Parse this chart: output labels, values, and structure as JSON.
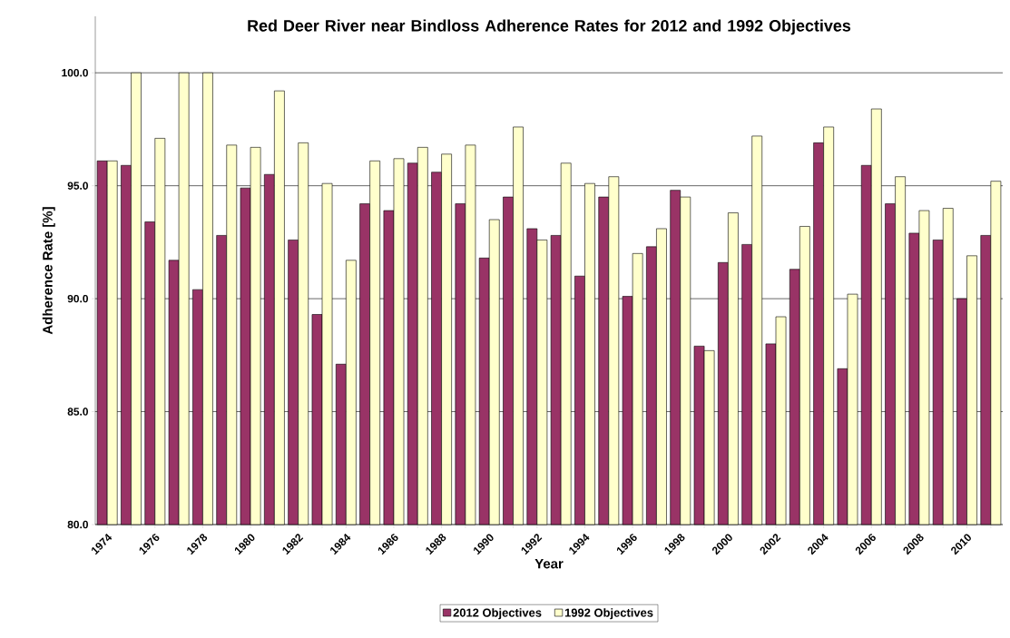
{
  "chart_data": {
    "type": "bar",
    "title": "Red Deer River near Bindloss Adherence Rates for 2012 and 1992 Objectives",
    "xlabel": "Year",
    "ylabel": "Adherence Rate [%]",
    "categories": [
      "1974",
      null,
      "1976",
      null,
      "1978",
      null,
      "1980",
      null,
      "1982",
      null,
      "1984",
      null,
      "1986",
      null,
      "1988",
      null,
      "1990",
      null,
      "1992",
      null,
      "1994",
      null,
      "1996",
      null,
      "1998",
      null,
      "2000",
      null,
      "2002",
      null,
      "2004",
      null,
      "2006",
      null,
      "2008",
      null,
      "2010",
      null
    ],
    "series": [
      {
        "name": "2012 Objectives",
        "color": "#993366",
        "values": [
          96.1,
          95.9,
          93.4,
          91.7,
          90.4,
          92.8,
          94.9,
          95.5,
          92.6,
          89.3,
          87.1,
          94.2,
          93.9,
          96.0,
          95.6,
          94.2,
          91.8,
          94.5,
          93.1,
          92.8,
          91.0,
          94.5,
          90.1,
          92.3,
          94.8,
          87.9,
          91.6,
          92.4,
          88.0,
          91.3,
          96.9,
          86.9,
          95.9,
          94.2,
          92.9,
          92.6,
          90.0,
          92.8
        ]
      },
      {
        "name": "1992 Objectives",
        "color": "#ffffcc",
        "values": [
          96.1,
          100.0,
          97.1,
          100.0,
          100.0,
          96.8,
          96.7,
          99.2,
          96.9,
          95.1,
          91.7,
          96.1,
          96.2,
          96.7,
          96.4,
          96.8,
          93.5,
          97.6,
          92.6,
          96.0,
          95.1,
          95.4,
          92.0,
          93.1,
          94.5,
          87.7,
          93.8,
          97.2,
          89.2,
          93.2,
          97.6,
          90.2,
          98.4,
          95.4,
          93.9,
          94.0,
          91.9,
          95.2
        ]
      }
    ],
    "ylim": [
      80,
      102.5
    ],
    "yticks": [
      {
        "value": 80,
        "label": "80.0"
      },
      {
        "value": 85,
        "label": "85.0"
      },
      {
        "value": 90,
        "label": "90.0"
      },
      {
        "value": 95,
        "label": "95.0"
      },
      {
        "value": 100,
        "label": "100.0"
      }
    ],
    "grid": "y",
    "legend": "bottom"
  }
}
